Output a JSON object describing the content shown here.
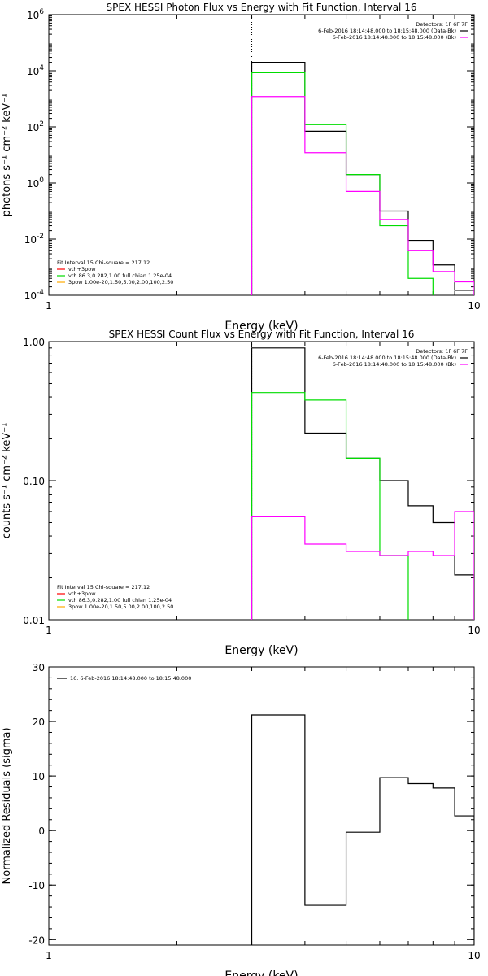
{
  "chart_data": [
    {
      "type": "line",
      "title": "SPEX HESSI Photon Flux vs Energy with Fit Function, Interval 16",
      "xlabel": "Energy (keV)",
      "ylabel": "photons s⁻¹ cm⁻² keV⁻¹",
      "xscale": "log",
      "yscale": "log",
      "xlim": [
        1,
        10
      ],
      "ylim": [
        0.0001,
        1000000
      ],
      "grid": false,
      "xticks": [
        {
          "v": 1,
          "label": "1"
        },
        {
          "v": 10,
          "label": "10"
        }
      ],
      "yticks": [
        {
          "v": 0.0001,
          "base": "10",
          "exp": "-4"
        },
        {
          "v": 0.01,
          "base": "10",
          "exp": "-2"
        },
        {
          "v": 1,
          "base": "10",
          "exp": "0"
        },
        {
          "v": 100,
          "base": "10",
          "exp": "2"
        },
        {
          "v": 10000,
          "base": "10",
          "exp": "4"
        },
        {
          "v": 1000000,
          "base": "10",
          "exp": "6"
        }
      ],
      "vline": 3,
      "legend_right": {
        "header": "Detectors: 1F 6F 7F",
        "entries": [
          {
            "label": "6-Feb-2016 18:14:48.000 to 18:15:48.000 (Data-Bk)",
            "color": "#000000"
          },
          {
            "label": "6-Feb-2016 18:14:48.000 to 18:15:48.000 (Bk)",
            "color": "#ff00ff"
          }
        ]
      },
      "legend_left": {
        "header": "Fit Interval 15   Chi-square = 217.12",
        "entries": [
          {
            "label": "vth+3pow",
            "color": "#ff0000"
          },
          {
            "label": "vth 86.3,0.282,1.00  full chian 1.25e-04",
            "color": "#00dd00"
          },
          {
            "label": "3pow 1.00e-20,1.50,5.00,2.00,100,2.50",
            "color": "#ffaa00"
          }
        ]
      },
      "series": [
        {
          "color": "#000000",
          "edges": [
            3,
            4,
            5,
            6,
            7,
            8,
            9,
            10
          ],
          "values": [
            20000,
            70,
            2,
            0.1,
            0.009,
            0.0012,
            0.00015
          ]
        },
        {
          "color": "#00dd00",
          "edges": [
            3,
            4,
            5,
            6,
            7,
            8
          ],
          "values": [
            8500,
            120,
            2,
            0.03,
            0.0004
          ]
        },
        {
          "color": "#ff00ff",
          "edges": [
            3,
            4,
            5,
            6,
            7,
            8,
            9,
            10
          ],
          "values": [
            1200,
            12,
            0.5,
            0.05,
            0.004,
            0.0007,
            0.0003
          ]
        }
      ]
    },
    {
      "type": "line",
      "title": "SPEX HESSI Count Flux vs Energy with Fit Function, Interval 16",
      "xlabel": "Energy (keV)",
      "ylabel": "counts s⁻¹ cm⁻² keV⁻¹",
      "xscale": "log",
      "yscale": "log",
      "xlim": [
        1,
        10
      ],
      "ylim": [
        0.01,
        1.0
      ],
      "grid": false,
      "xticks": [
        {
          "v": 1,
          "label": "1"
        },
        {
          "v": 10,
          "label": "10"
        }
      ],
      "yticks": [
        {
          "v": 0.01,
          "label": "0.01"
        },
        {
          "v": 0.1,
          "label": "0.10"
        },
        {
          "v": 1,
          "label": "1.00"
        }
      ],
      "vline": 3,
      "legend_right": {
        "header": "Detectors: 1F 6F 7F",
        "entries": [
          {
            "label": "6-Feb-2016 18:14:48.000 to 18:15:48.000 (Data-Bk)",
            "color": "#000000"
          },
          {
            "label": "6-Feb-2016 18:14:48.000 to 18:15:48.000 (Bk)",
            "color": "#ff00ff"
          }
        ]
      },
      "legend_left": {
        "header": "Fit Interval 15   Chi-square = 217.12",
        "entries": [
          {
            "label": "vth+3pow",
            "color": "#ff0000"
          },
          {
            "label": "vth 86.3,0.282,1.00  full chian 1.25e-04",
            "color": "#00dd00"
          },
          {
            "label": "3pow 1.00e-20,1.50,5.00,2.00,100,2.50",
            "color": "#ffaa00"
          }
        ]
      },
      "series": [
        {
          "color": "#000000",
          "edges": [
            3,
            4,
            5,
            6,
            7,
            8,
            9,
            10
          ],
          "values": [
            0.9,
            0.22,
            0.145,
            0.1,
            0.066,
            0.05,
            0.021
          ]
        },
        {
          "color": "#00dd00",
          "edges": [
            3,
            4,
            5,
            6,
            7
          ],
          "values": [
            0.43,
            0.38,
            0.145,
            0.029
          ]
        },
        {
          "color": "#ff00ff",
          "edges": [
            3,
            4,
            5,
            6,
            7,
            8,
            9,
            10
          ],
          "values": [
            0.055,
            0.035,
            0.031,
            0.029,
            0.031,
            0.029,
            0.06
          ]
        }
      ]
    },
    {
      "type": "line",
      "title": "",
      "xlabel": "Energy (keV)",
      "ylabel": "Normalized Residuals (sigma)",
      "xscale": "log",
      "yscale": "linear",
      "xlim": [
        1,
        10
      ],
      "ylim": [
        -21,
        30
      ],
      "grid": false,
      "xticks": [
        {
          "v": 1,
          "label": "1"
        },
        {
          "v": 10,
          "label": "10"
        }
      ],
      "yticks": [
        {
          "v": -20,
          "label": "-20"
        },
        {
          "v": -10,
          "label": "-10"
        },
        {
          "v": 0,
          "label": "0"
        },
        {
          "v": 10,
          "label": "10"
        },
        {
          "v": 20,
          "label": "20"
        },
        {
          "v": 30,
          "label": "30"
        }
      ],
      "legend_left_top": {
        "entries": [
          {
            "label": "16.  6-Feb-2016 18:14:48.000 to 18:15:48.000",
            "color": "#000000"
          }
        ]
      },
      "series": [
        {
          "color": "#000000",
          "edges": [
            3,
            4,
            5,
            6,
            7,
            8,
            9,
            10
          ],
          "values": [
            21.2,
            -13.7,
            -0.3,
            9.7,
            8.6,
            7.8,
            2.7
          ]
        }
      ]
    }
  ]
}
